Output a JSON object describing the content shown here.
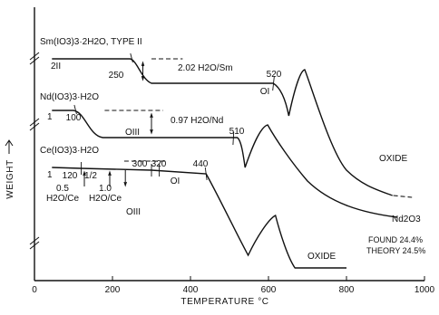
{
  "chart_data": {
    "type": "line",
    "title": "",
    "xlabel": "TEMPERATURE °C",
    "ylabel": "WEIGHT",
    "xlim": [
      0,
      1000
    ],
    "x_ticks": [
      0,
      200,
      400,
      600,
      800,
      1000
    ],
    "grid": false,
    "legend": "none",
    "series": [
      {
        "name": "Sm(IO3)3·2H2O, TYPE II",
        "phase_label": "2II",
        "dehydration_label": "2.02 H2O/Sm",
        "product_label": "OI",
        "final_label": "OXIDE",
        "temperature_markers": [
          "250",
          "520"
        ]
      },
      {
        "name": "Nd(IO3)3·H2O",
        "phase_label": "1",
        "dehydration_label": "0.97 H2O/Nd",
        "product_label": "OIII",
        "final_label": "Nd2O3",
        "temperature_markers": [
          "100",
          "510"
        ],
        "found": "FOUND 24.4%",
        "theory": "THEORY 24.5%"
      },
      {
        "name": "Ce(IO3)3·H2O",
        "phase_label": "1",
        "intermediate_label": "1/2",
        "step1_label": [
          "0.5",
          "H2O/Ce"
        ],
        "step2_label": [
          "1.0",
          "H2O/Ce"
        ],
        "product_labels": [
          "OI",
          "OIII"
        ],
        "final_label": "OXIDE",
        "temperature_markers": [
          "120",
          "300",
          "320",
          "440"
        ]
      }
    ]
  }
}
